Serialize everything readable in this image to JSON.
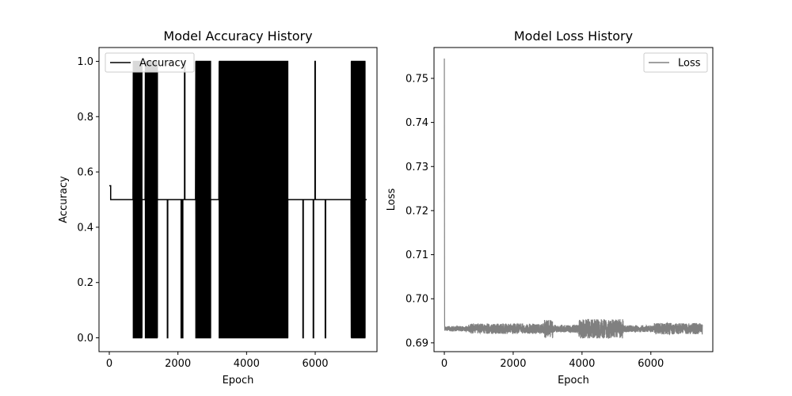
{
  "chart_data": [
    {
      "type": "line",
      "title": "Model Accuracy History",
      "xlabel": "Epoch",
      "ylabel": "Accuracy",
      "xlim": [
        -300,
        7800
      ],
      "ylim": [
        -0.05,
        1.05
      ],
      "xticks": [
        0,
        2000,
        4000,
        6000
      ],
      "yticks": [
        0.0,
        0.2,
        0.4,
        0.6,
        0.8,
        1.0
      ],
      "ytick_format": 1,
      "grid": false,
      "legend_position": "top-left",
      "legend": [
        "Accuracy"
      ],
      "series": [
        {
          "name": "Accuracy",
          "color": "#000000",
          "epochs_total": 7500,
          "initial_value": 0.55,
          "baseline": 0.5,
          "oscillation_bands": [
            [
              700,
              840
            ],
            [
              860,
              950
            ],
            [
              1050,
              1400
            ],
            [
              2520,
              2950
            ],
            [
              3200,
              5200
            ],
            [
              7050,
              7450
            ]
          ],
          "spikes": [
            [
              1700,
              0.0
            ],
            [
              2100,
              0.0
            ],
            [
              2140,
              0.0
            ],
            [
              2200,
              1.0
            ],
            [
              5650,
              0.0
            ],
            [
              5950,
              0.0
            ],
            [
              6000,
              1.0
            ],
            [
              6300,
              0.0
            ]
          ]
        }
      ]
    },
    {
      "type": "line",
      "title": "Model Loss History",
      "xlabel": "Epoch",
      "ylabel": "Loss",
      "xlim": [
        -300,
        7800
      ],
      "ylim": [
        0.688,
        0.757
      ],
      "xticks": [
        0,
        2000,
        4000,
        6000
      ],
      "yticks": [
        0.69,
        0.7,
        0.71,
        0.72,
        0.73,
        0.74,
        0.75
      ],
      "ytick_format": 2,
      "grid": false,
      "legend_position": "top-right",
      "legend": [
        "Loss"
      ],
      "series": [
        {
          "name": "Loss",
          "color": "#808080",
          "epochs_total": 7500,
          "initial_spike": 0.7545,
          "baseline": 0.6932,
          "noise_segments": [
            [
              0,
              700,
              0.0006
            ],
            [
              700,
              2900,
              0.0012
            ],
            [
              2900,
              3150,
              0.002
            ],
            [
              3150,
              3900,
              0.0009
            ],
            [
              3900,
              5200,
              0.0022
            ],
            [
              5200,
              6100,
              0.0008
            ],
            [
              6100,
              7500,
              0.0013
            ]
          ]
        }
      ]
    }
  ]
}
